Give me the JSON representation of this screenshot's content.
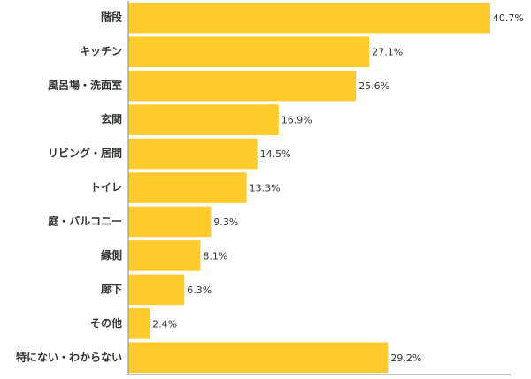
{
  "chart_data": {
    "type": "bar",
    "orientation": "horizontal",
    "categories": [
      "階段",
      "キッチン",
      "風呂場・洗面室",
      "玄関",
      "リビング・居間",
      "トイレ",
      "庭・バルコニー",
      "縁側",
      "廊下",
      "その他",
      "特にない・わからない"
    ],
    "values": [
      40.7,
      27.1,
      25.6,
      16.9,
      14.5,
      13.3,
      9.3,
      8.1,
      6.3,
      2.4,
      29.2
    ],
    "value_labels": [
      "40.7%",
      "27.1%",
      "25.6%",
      "16.9%",
      "14.5%",
      "13.3%",
      "9.3%",
      "8.1%",
      "6.3%",
      "2.4%",
      "29.2%"
    ],
    "color": "#ffca2c",
    "xlim": [
      0,
      43
    ]
  }
}
